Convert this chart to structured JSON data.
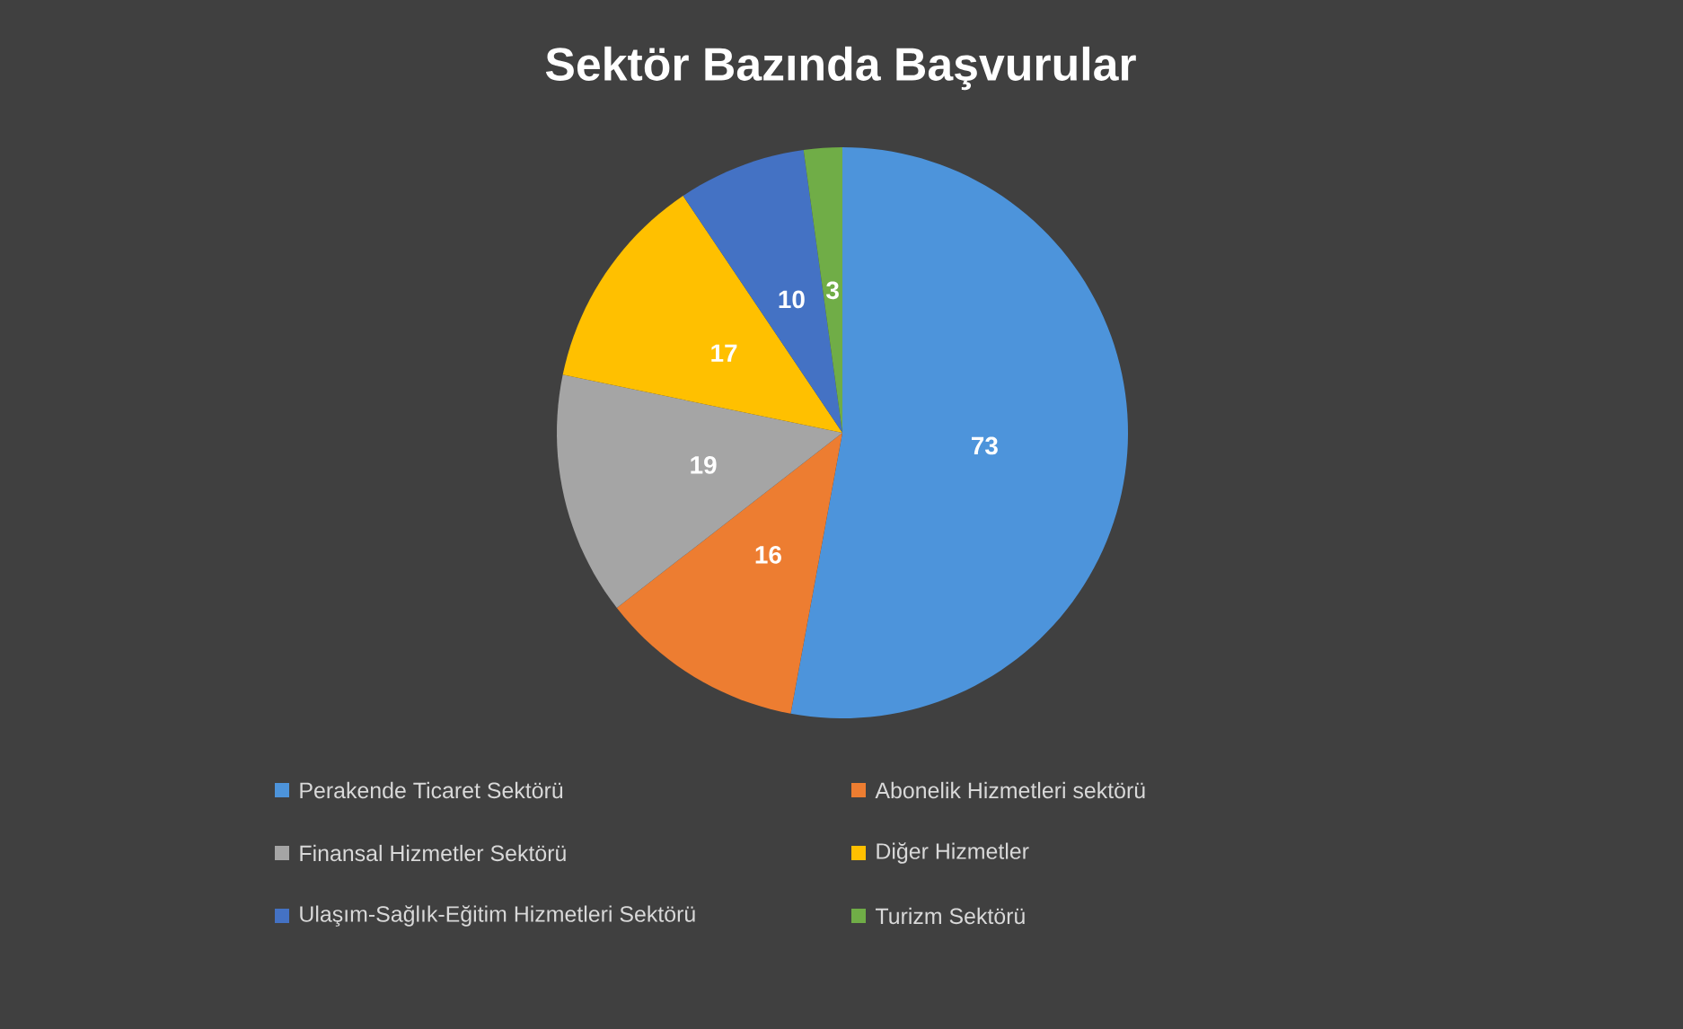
{
  "chart_data": {
    "type": "pie",
    "title": "Sektör Bazında Başvurular",
    "categories": [
      "Perakende Ticaret Sektörü",
      "Abonelik Hizmetleri sektörü",
      "Finansal Hizmetler Sektörü",
      "Diğer Hizmetler",
      "Ulaşım-Sağlık-Eğitim Hizmetleri Sektörü",
      "Turizm Sektörü"
    ],
    "values": [
      73,
      16,
      19,
      17,
      10,
      3
    ],
    "colors": [
      "#4d94db",
      "#ed7d31",
      "#a5a5a5",
      "#ffc000",
      "#4472c4",
      "#70ad47"
    ],
    "data_labels": true,
    "legend": "bottom"
  }
}
